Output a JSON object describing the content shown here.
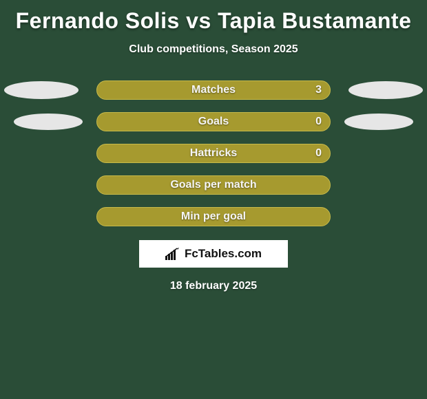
{
  "title": "Fernando Solis vs Tapia Bustamante",
  "subtitle": "Club competitions, Season 2025",
  "date": "18 february 2025",
  "branding": {
    "text": "FcTables.com",
    "icon_name": "bar-chart-icon"
  },
  "background_color": "#2a4d37",
  "ellipse_color": "#e6e6e6",
  "text_color": "#ffffff",
  "rows": [
    {
      "label": "Matches",
      "value": "3",
      "bar_color": "#a69a2f",
      "border_color": "#c7ba4a",
      "show_left_ellipse": true,
      "show_right_ellipse": true,
      "ellipse_variant": "matches",
      "show_value": true
    },
    {
      "label": "Goals",
      "value": "0",
      "bar_color": "#a69a2f",
      "border_color": "#c7ba4a",
      "show_left_ellipse": true,
      "show_right_ellipse": true,
      "ellipse_variant": "goals",
      "show_value": true
    },
    {
      "label": "Hattricks",
      "value": "0",
      "bar_color": "#a69a2f",
      "border_color": "#c7ba4a",
      "show_left_ellipse": false,
      "show_right_ellipse": false,
      "ellipse_variant": "",
      "show_value": true
    },
    {
      "label": "Goals per match",
      "value": "",
      "bar_color": "#a69a2f",
      "border_color": "#c7ba4a",
      "show_left_ellipse": false,
      "show_right_ellipse": false,
      "ellipse_variant": "",
      "show_value": false
    },
    {
      "label": "Min per goal",
      "value": "",
      "bar_color": "#a69a2f",
      "border_color": "#c7ba4a",
      "show_left_ellipse": false,
      "show_right_ellipse": false,
      "ellipse_variant": "",
      "show_value": false
    }
  ]
}
